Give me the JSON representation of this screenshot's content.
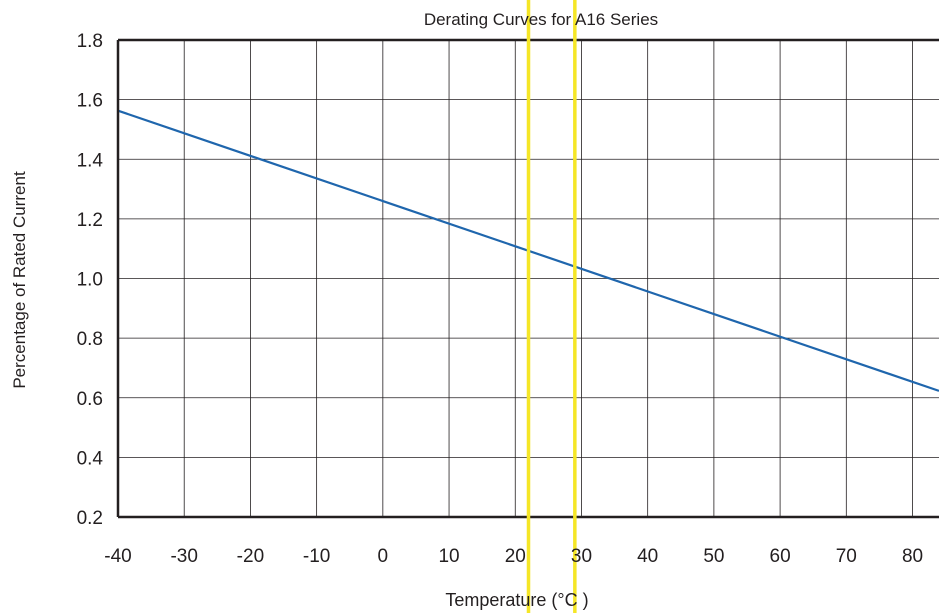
{
  "chart_data": {
    "type": "line",
    "title": "Derating Curves for A16 Series",
    "xlabel": "Temperature (°C )",
    "ylabel": "Percentage of Rated Current",
    "xlim": [
      -40,
      84
    ],
    "ylim": [
      0.2,
      1.8
    ],
    "xticks": [
      "-40",
      "-30",
      "-20",
      "-10",
      "0",
      "10",
      "20",
      "30",
      "40",
      "50",
      "60",
      "70",
      "80"
    ],
    "yticks": [
      "0.2",
      "0.4",
      "0.6",
      "0.8",
      "1.0",
      "1.2",
      "1.4",
      "1.6",
      "1.8"
    ],
    "grid": true,
    "series": [
      {
        "x": [
          -40,
          84
        ],
        "y": [
          1.563,
          0.623
        ],
        "color": "#1f66ad"
      }
    ],
    "markers": [
      {
        "x": 22,
        "color": "#f5e626"
      },
      {
        "x": 29,
        "color": "#f5e626"
      }
    ]
  }
}
